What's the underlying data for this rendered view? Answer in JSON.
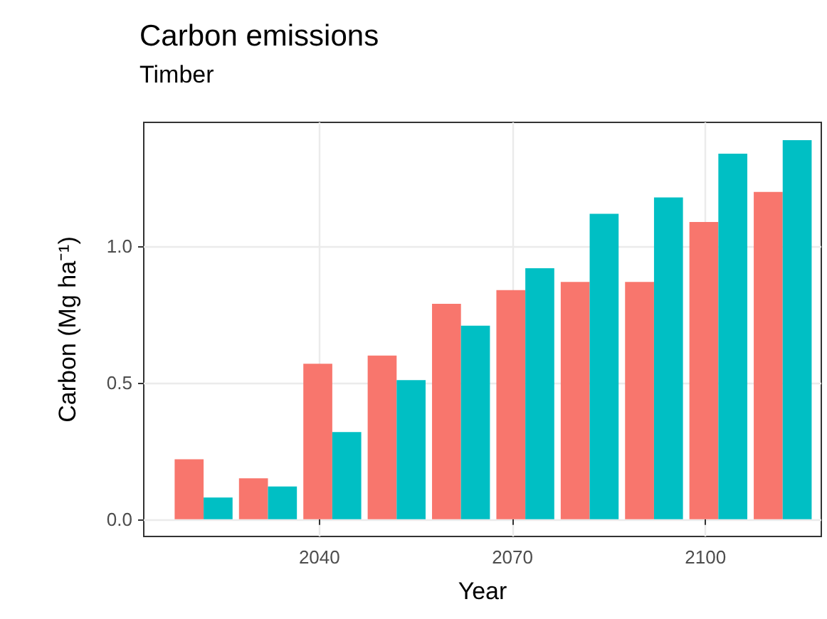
{
  "chart_data": {
    "type": "bar",
    "title": "Carbon emissions",
    "subtitle": "Timber",
    "xlabel": "Year",
    "ylabel": "Carbon (Mg ha⁻¹)",
    "x": [
      2022,
      2032,
      2042,
      2052,
      2062,
      2072,
      2082,
      2092,
      2102,
      2112
    ],
    "series": [
      {
        "color": "#f8766d",
        "values": [
          0.22,
          0.15,
          0.57,
          0.6,
          0.79,
          0.84,
          0.87,
          0.87,
          1.09,
          1.2
        ]
      },
      {
        "color": "#00bfc4",
        "values": [
          0.08,
          0.12,
          0.32,
          0.51,
          0.71,
          0.92,
          1.12,
          1.18,
          1.34,
          1.39
        ]
      }
    ],
    "xlim": [
      2012.7,
      2118
    ],
    "xticks": [
      2040,
      2070,
      2100
    ],
    "ylim": [
      -0.063,
      1.455
    ],
    "yticks": [
      {
        "value": 0,
        "label": "0.0"
      },
      {
        "value": 0.5,
        "label": "0.5"
      },
      {
        "value": 1,
        "label": "1.0"
      }
    ],
    "grid": true
  }
}
